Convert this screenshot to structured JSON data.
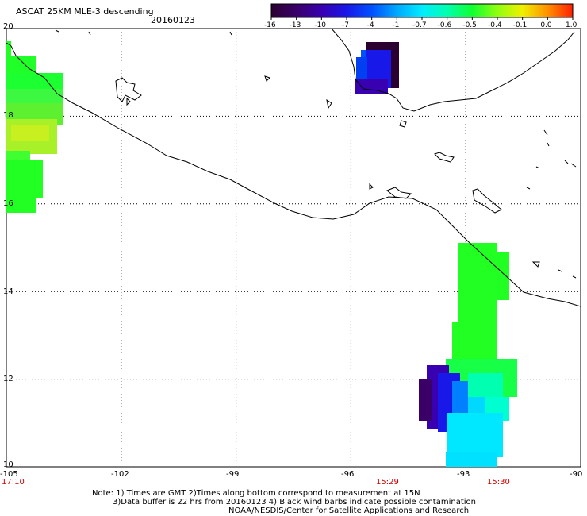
{
  "header": {
    "title": "ASCAT 25KM MLE-3 descending",
    "date": "20160123"
  },
  "colorbar": {
    "labels": [
      "-16",
      "-13",
      "-10",
      "-7",
      "-4",
      "-1",
      "-0.7",
      "-0.6",
      "-0.5",
      "-0.4",
      "-0.1",
      "0.0",
      "1.0"
    ],
    "colors": [
      "#2a0030",
      "#3a0068",
      "#3800b0",
      "#1818e8",
      "#0050ff",
      "#00a8ff",
      "#00ecff",
      "#00ffb0",
      "#10ff30",
      "#90ff10",
      "#f0f000",
      "#ff9000",
      "#ff2000"
    ]
  },
  "axes": {
    "y_ticks": [
      "20",
      "18",
      "16",
      "14",
      "12",
      "10"
    ],
    "x_ticks": [
      "-105",
      "-102",
      "-99",
      "-96",
      "-93",
      "-90"
    ],
    "lat_range": [
      10,
      20
    ],
    "lon_range": [
      -105,
      -90
    ]
  },
  "times": [
    {
      "label": "17:10",
      "lon": -105
    },
    {
      "label": "15:29",
      "lon": -95.4
    },
    {
      "label": "15:30",
      "lon": -92.3
    }
  ],
  "notes": {
    "line1": "Note: 1) Times are GMT 2)Times along bottom correspond to measurement at 15N",
    "line2": "3)Data buffer is 22 hrs from 20160123 4) Black wind barbs indicate possible contamination",
    "line3": "NOAA/NESDIS/Center for Satellite Applications and Research"
  },
  "map": {
    "grid": "dotted",
    "coastline_color": "#000000"
  }
}
